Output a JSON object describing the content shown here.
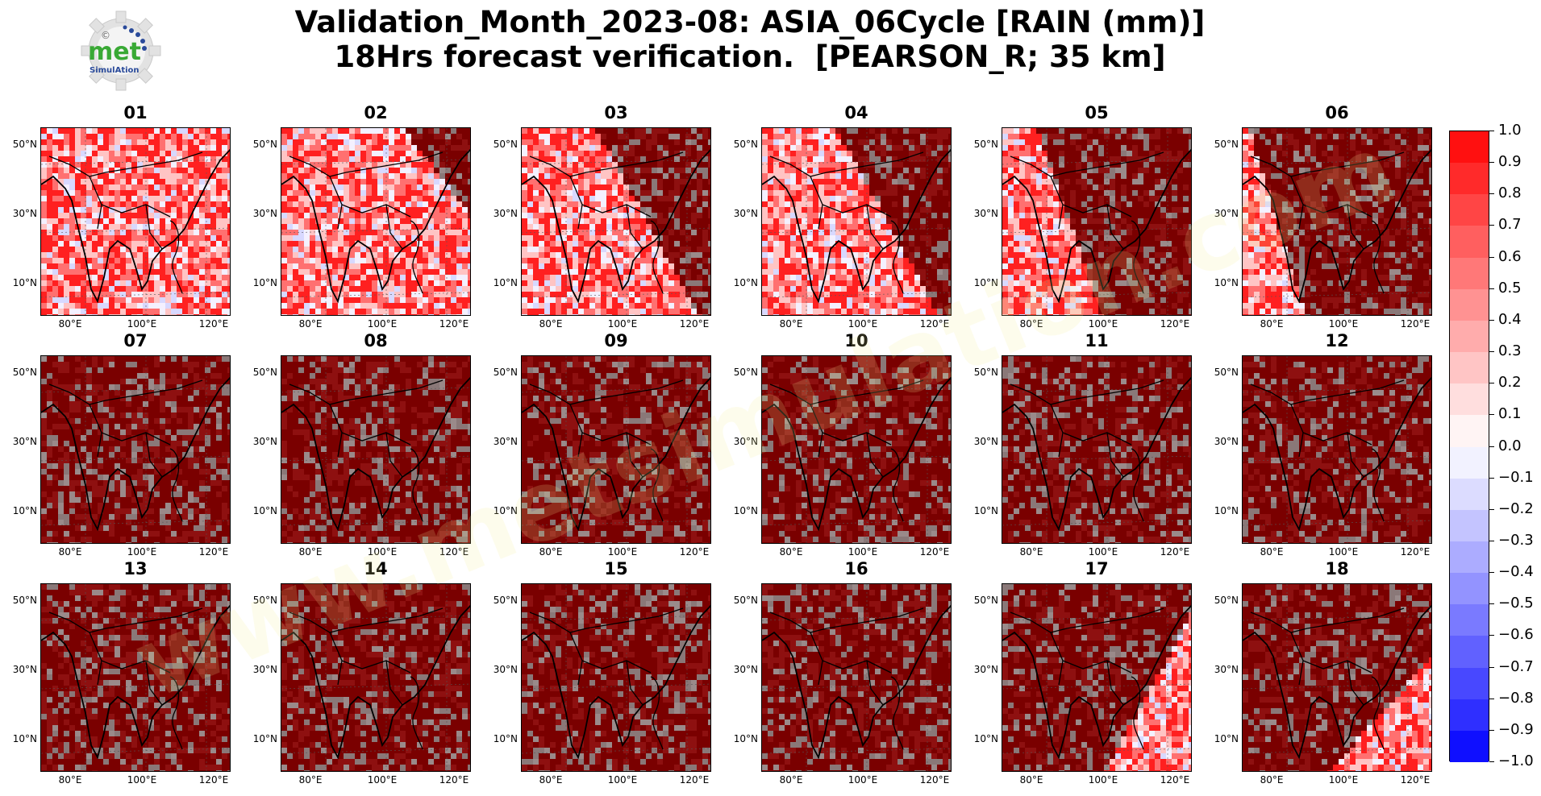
{
  "title": {
    "line1": "Validation_Month_2023-08: ASIA_06Cycle [RAIN (mm)]",
    "line2": "18Hrs forecast verification.  [PEARSON_R; 35 km]"
  },
  "logo": {
    "text_main": "met",
    "text_sub": "SimulAtion",
    "copyright": "©"
  },
  "watermark": "www.metsimulation.com",
  "axes": {
    "lat_ticks": [
      "50°N",
      "30°N",
      "10°N"
    ],
    "lon_ticks": [
      "80°E",
      "100°E",
      "120°E"
    ]
  },
  "panels": [
    {
      "label": "01",
      "coverage": "full_red"
    },
    {
      "label": "02",
      "coverage": "mostly_red_dark_ne"
    },
    {
      "label": "03",
      "coverage": "red_west_dark_east"
    },
    {
      "label": "04",
      "coverage": "red_west_dark_east"
    },
    {
      "label": "05",
      "coverage": "red_far_west_dark_east"
    },
    {
      "label": "06",
      "coverage": "red_edge_west_dark"
    },
    {
      "label": "07",
      "coverage": "dark"
    },
    {
      "label": "08",
      "coverage": "dark"
    },
    {
      "label": "09",
      "coverage": "dark"
    },
    {
      "label": "10",
      "coverage": "dark"
    },
    {
      "label": "11",
      "coverage": "dark"
    },
    {
      "label": "12",
      "coverage": "dark"
    },
    {
      "label": "13",
      "coverage": "dark"
    },
    {
      "label": "14",
      "coverage": "dark"
    },
    {
      "label": "15",
      "coverage": "dark"
    },
    {
      "label": "16",
      "coverage": "dark"
    },
    {
      "label": "17",
      "coverage": "dark_red_se"
    },
    {
      "label": "18",
      "coverage": "dark_red_east"
    }
  ],
  "colorbar": {
    "ticks": [
      "1.0",
      "0.9",
      "0.8",
      "0.7",
      "0.6",
      "0.5",
      "0.4",
      "0.3",
      "0.2",
      "0.1",
      "0.0",
      "−0.1",
      "−0.2",
      "−0.3",
      "−0.4",
      "−0.5",
      "−0.6",
      "−0.7",
      "−0.8",
      "−0.9",
      "−1.0"
    ],
    "colors": [
      "#ff1010",
      "#ff2a2a",
      "#ff4545",
      "#ff5f5f",
      "#ff7878",
      "#ff9292",
      "#ffacac",
      "#ffc5c5",
      "#ffdede",
      "#fff4f4",
      "#f2f2ff",
      "#dcdcff",
      "#c4c4ff",
      "#acacff",
      "#9393ff",
      "#7a7aff",
      "#6161ff",
      "#4848ff",
      "#2f2fff",
      "#0f0fff"
    ]
  }
}
